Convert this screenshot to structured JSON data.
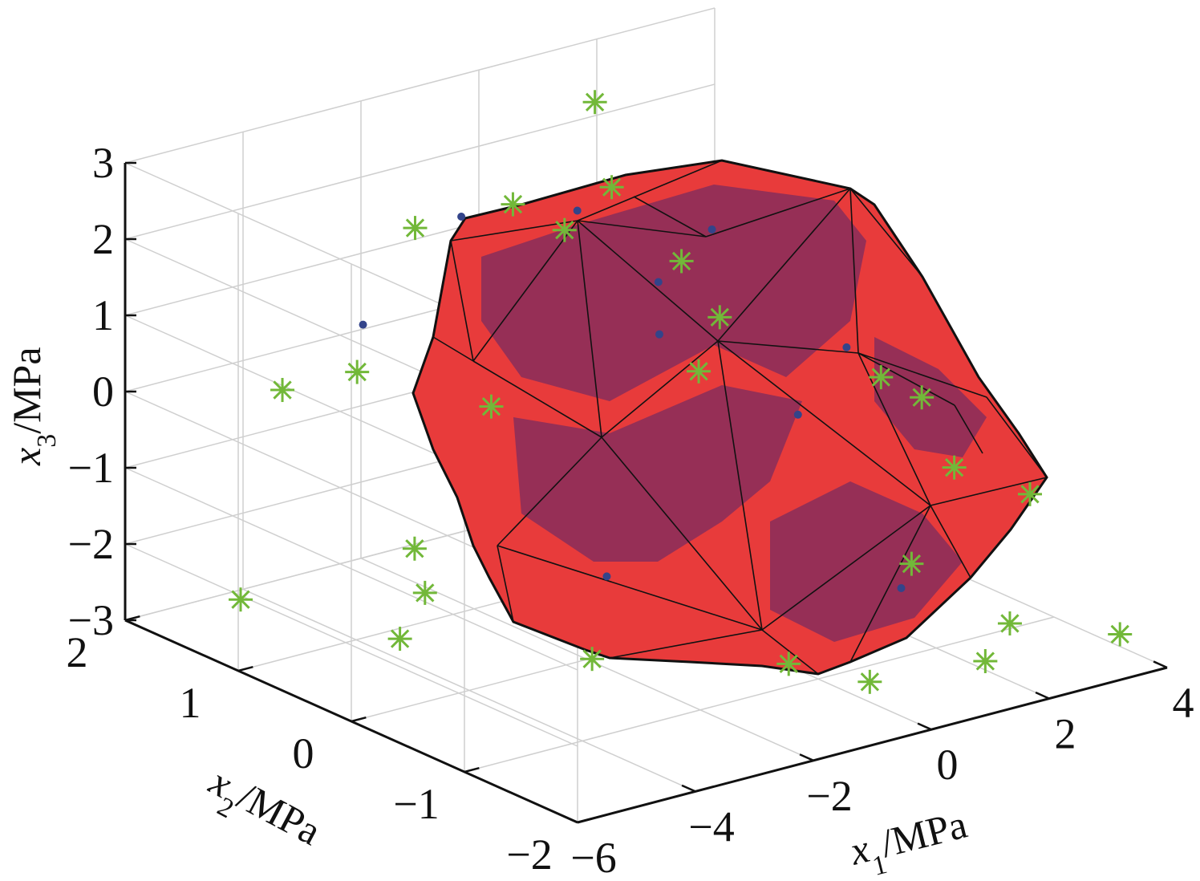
{
  "chart_data": {
    "type": "scatter3d",
    "title": "",
    "view": "3-D scatter with convex hull (red/purple polyhedron)",
    "axes": {
      "x1": {
        "label_var": "x",
        "label_sub": "1",
        "label_unit": "/MPa",
        "ticks": [
          "−6",
          "−4",
          "−2",
          "0",
          "2",
          "4"
        ],
        "range": [
          -6,
          4
        ]
      },
      "x2": {
        "label_var": "x",
        "label_sub": "2",
        "label_unit": "/MPa",
        "ticks": [
          "2",
          "1",
          "0",
          "−1",
          "−2"
        ],
        "range": [
          -2,
          2
        ]
      },
      "x3": {
        "label_var": "x",
        "label_sub": "3",
        "label_unit": "/MPa",
        "ticks": [
          "3",
          "2",
          "1",
          "0",
          "−1",
          "−2",
          "−3"
        ],
        "range": [
          -3,
          3
        ]
      }
    },
    "grid": true,
    "colors": {
      "hull_face": "#e83b3b",
      "hull_shadow": "#8a2d5a",
      "hull_edge": "#111111",
      "star_marker": "#72b839",
      "dot_marker": "#33448a",
      "grid": "#cfcfcf",
      "axis": "#111111"
    },
    "series": [
      {
        "marker": "star",
        "points": [
          [
            -1.2,
            0.2,
            2.9
          ],
          [
            -2.3,
            0.5,
            2.7
          ],
          [
            -2.0,
            0.2,
            2.5
          ],
          [
            -3.0,
            1.0,
            2.2
          ],
          [
            1.2,
            1.6,
            2.6
          ],
          [
            -0.4,
            0.0,
            1.9
          ],
          [
            -3.6,
            1.2,
            0.3
          ],
          [
            -4.1,
            1.6,
            -0.1
          ],
          [
            -1.9,
            0.9,
            -0.3
          ],
          [
            -0.3,
            -0.1,
            0.5
          ],
          [
            1.4,
            0.6,
            0.4
          ],
          [
            2.6,
            -0.2,
            -0.1
          ],
          [
            3.1,
            -0.3,
            -0.4
          ],
          [
            2.5,
            -0.9,
            -0.8
          ],
          [
            3.4,
            -1.1,
            -1.2
          ],
          [
            1.2,
            -1.2,
            -1.6
          ],
          [
            -3.6,
            0.6,
            -2.2
          ],
          [
            -5.0,
            1.5,
            -2.6
          ],
          [
            -3.2,
            0.9,
            -1.9
          ],
          [
            -4.6,
            0.3,
            -2.4
          ],
          [
            -0.5,
            -1.0,
            -2.7
          ],
          [
            2.1,
            -1.6,
            -2.3
          ],
          [
            1.3,
            -1.8,
            -2.5
          ],
          [
            -2.3,
            -0.2,
            -2.8
          ],
          [
            0.3,
            -1.3,
            -2.9
          ],
          [
            3.2,
            -2.0,
            -2.4
          ]
        ]
      },
      {
        "marker": "dot",
        "points": [
          [
            -1.4,
            0.4,
            2.5
          ],
          [
            -0.6,
            0.1,
            1.6
          ],
          [
            -0.2,
            0.3,
            0.7
          ],
          [
            1.0,
            -0.3,
            -0.2
          ],
          [
            -3.5,
            1.2,
            0.9
          ],
          [
            -0.9,
            0.4,
            -2.4
          ],
          [
            1.6,
            -0.9,
            -2.2
          ],
          [
            0.5,
            0.2,
            2.0
          ],
          [
            2.4,
            0.0,
            0.2
          ],
          [
            -2.6,
            0.8,
            2.4
          ]
        ]
      }
    ]
  }
}
